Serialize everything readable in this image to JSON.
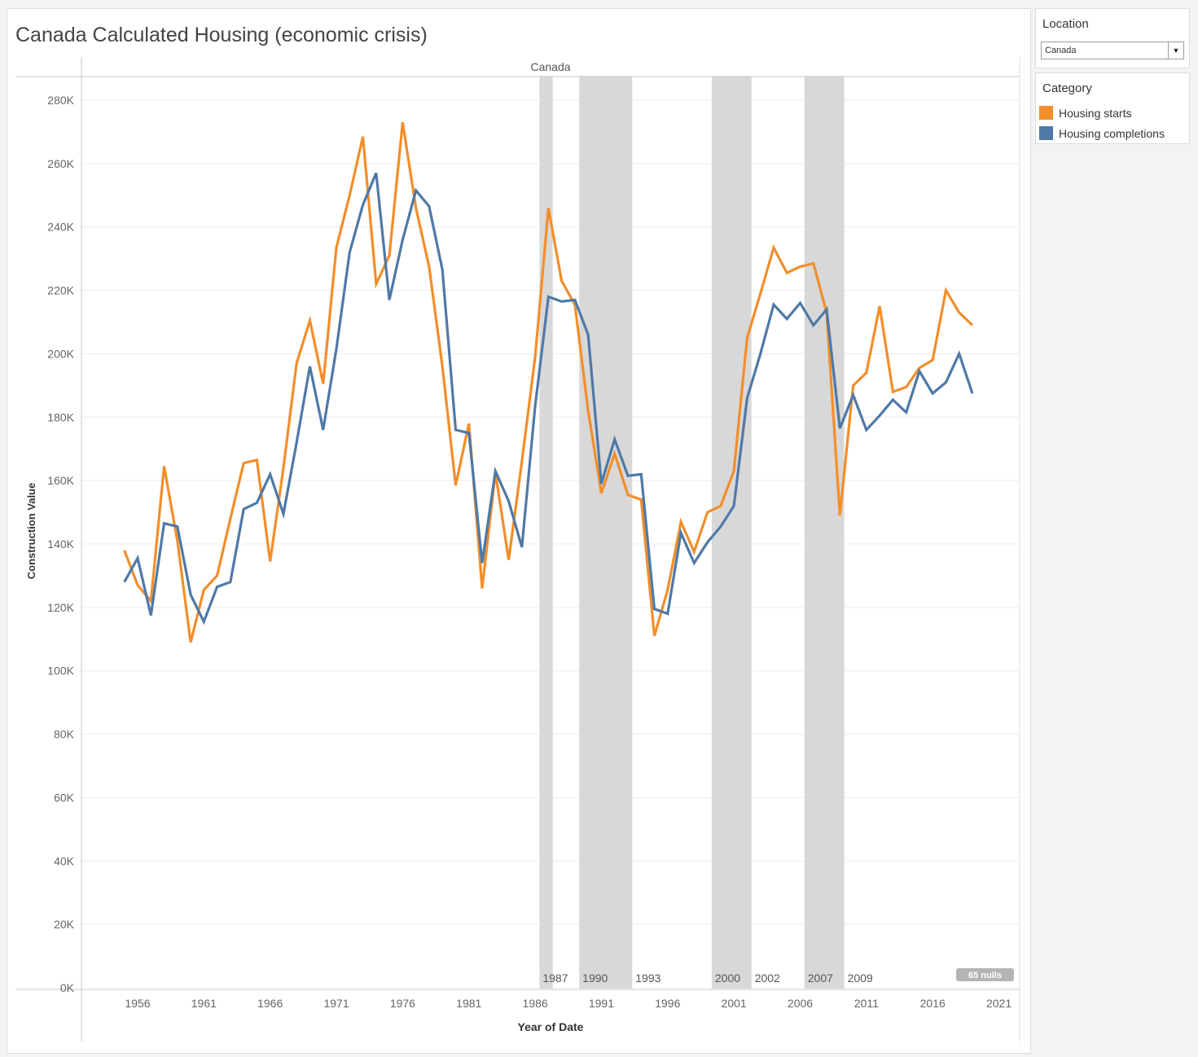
{
  "title": "Canada Calculated Housing (economic crisis)",
  "filters": {
    "location": {
      "label": "Location",
      "value": "Canada"
    }
  },
  "legend": {
    "title": "Category",
    "items": [
      {
        "label": "Housing starts",
        "color": "#f28e2b"
      },
      {
        "label": "Housing completions",
        "color": "#4e79a7"
      }
    ]
  },
  "nulls_badge": "65 nulls",
  "chart_data": {
    "type": "line",
    "title": "Canada Calculated Housing (economic crisis)",
    "pane_header": "Canada",
    "xlabel": "Year of Date",
    "ylabel": "Construction Value",
    "xlim": [
      1951,
      2021
    ],
    "ylim": [
      0,
      280000
    ],
    "x_ticks": [
      1956,
      1961,
      1966,
      1971,
      1976,
      1981,
      1986,
      1991,
      1996,
      2001,
      2006,
      2011,
      2016,
      2021
    ],
    "y_ticks": [
      {
        "value": 0,
        "label": "0K"
      },
      {
        "value": 20000,
        "label": "20K"
      },
      {
        "value": 40000,
        "label": "40K"
      },
      {
        "value": 60000,
        "label": "60K"
      },
      {
        "value": 80000,
        "label": "80K"
      },
      {
        "value": 100000,
        "label": "100K"
      },
      {
        "value": 120000,
        "label": "120K"
      },
      {
        "value": 140000,
        "label": "140K"
      },
      {
        "value": 160000,
        "label": "160K"
      },
      {
        "value": 180000,
        "label": "180K"
      },
      {
        "value": 200000,
        "label": "200K"
      },
      {
        "value": 220000,
        "label": "220K"
      },
      {
        "value": 240000,
        "label": "240K"
      },
      {
        "value": 260000,
        "label": "260K"
      },
      {
        "value": 280000,
        "label": "280K"
      }
    ],
    "grid": true,
    "legend_position": "right",
    "crisis_bands": [
      {
        "start": 1987,
        "end": 1988,
        "label": "1987"
      },
      {
        "start": 1990,
        "end": 1994,
        "label": "1990",
        "end_label": "1993"
      },
      {
        "start": 2000,
        "end": 2003,
        "label": "2000",
        "end_label": "2002"
      },
      {
        "start": 2007,
        "end": 2010,
        "label": "2007",
        "end_label": "2009"
      }
    ],
    "x": [
      1955,
      1956,
      1957,
      1958,
      1959,
      1960,
      1961,
      1962,
      1963,
      1964,
      1965,
      1966,
      1967,
      1968,
      1969,
      1970,
      1971,
      1972,
      1973,
      1974,
      1975,
      1976,
      1977,
      1978,
      1979,
      1980,
      1981,
      1982,
      1983,
      1984,
      1985,
      1986,
      1987,
      1988,
      1989,
      1990,
      1991,
      1992,
      1993,
      1994,
      1995,
      1996,
      1997,
      1998,
      1999,
      2000,
      2001,
      2002,
      2003,
      2004,
      2005,
      2006,
      2007,
      2008,
      2009,
      2010,
      2011,
      2012,
      2013,
      2014,
      2015,
      2016,
      2017,
      2018,
      2019
    ],
    "series": [
      {
        "name": "Housing starts",
        "color": "#f28e2b",
        "values": [
          138000,
          127000,
          122000,
          164500,
          141000,
          109000,
          125500,
          130000,
          148000,
          165500,
          166500,
          134500,
          164000,
          197000,
          210500,
          190500,
          233500,
          250000,
          268500,
          222000,
          231000,
          273000,
          246000,
          227500,
          196000,
          158500,
          178000,
          126000,
          162500,
          135000,
          166000,
          199000,
          246000,
          223000,
          215500,
          182000,
          156000,
          168500,
          155500,
          154000,
          111000,
          125500,
          147000,
          137500,
          150000,
          152000,
          163000,
          205000,
          219000,
          233500,
          225500,
          227500,
          228500,
          213000,
          149000,
          190000,
          194000,
          215000,
          188000,
          189500,
          195500,
          198000,
          220000,
          213000,
          209000
        ]
      },
      {
        "name": "Housing completions",
        "color": "#4e79a7",
        "values": [
          128000,
          135500,
          117500,
          146500,
          145500,
          124000,
          115500,
          126500,
          128000,
          151000,
          153000,
          162000,
          149500,
          172000,
          196000,
          176000,
          201500,
          232000,
          247000,
          257000,
          217000,
          236000,
          251500,
          246500,
          226500,
          176000,
          175000,
          134000,
          163000,
          153500,
          139000,
          183500,
          218000,
          216500,
          217000,
          206000,
          159000,
          173000,
          161500,
          162000,
          119500,
          118000,
          143500,
          134000,
          140500,
          145500,
          152000,
          186000,
          200000,
          215500,
          211000,
          216000,
          209000,
          214000,
          176500,
          187000,
          176000,
          180500,
          185500,
          181500,
          194500,
          187500,
          191000,
          200000,
          187500
        ]
      }
    ]
  }
}
